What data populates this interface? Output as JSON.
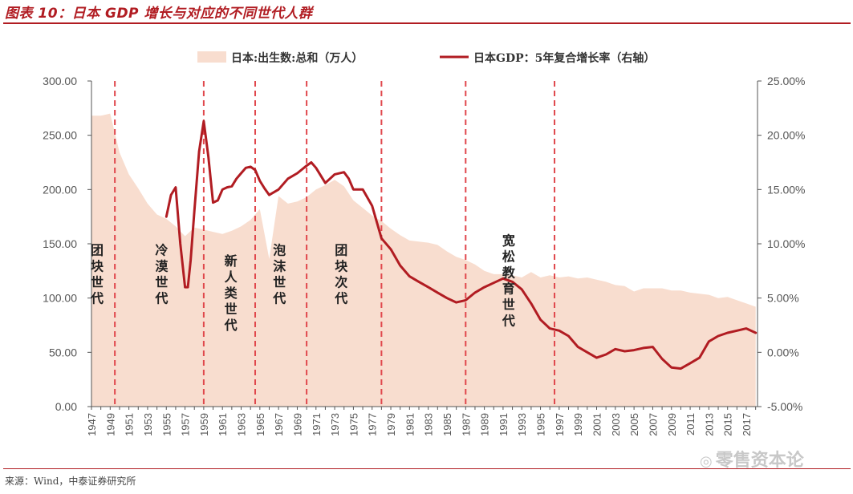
{
  "title": "图表 10：日本 GDP 增长与对应的不同世代人群",
  "source": "来源：Wind，中泰证券研究所",
  "watermark": "零售资本论",
  "colors": {
    "area": "#f8ddcf",
    "line": "#b11c22",
    "divider": "#e0474c",
    "axis": "#555555"
  },
  "chart_data": {
    "type": "area+line",
    "legend": [
      "日本:出生数:总和（万人）",
      "日本GDP：5年复合增长率（右轴）"
    ],
    "legend_position": "top",
    "y_left": {
      "ylim": [
        0,
        300
      ],
      "ticks": [
        "0.00",
        "50.00",
        "100.00",
        "150.00",
        "200.00",
        "250.00",
        "300.00"
      ]
    },
    "y_right": {
      "ylim": [
        -5,
        25
      ],
      "ticks": [
        "-5.00%",
        "0.00%",
        "5.00%",
        "10.00%",
        "15.00%",
        "20.00%",
        "25.00%"
      ]
    },
    "x_ticks": [
      "1947",
      "1949",
      "1951",
      "1953",
      "1955",
      "1957",
      "1959",
      "1961",
      "1963",
      "1965",
      "1967",
      "1969",
      "1971",
      "1973",
      "1975",
      "1977",
      "1979",
      "1981",
      "1983",
      "1985",
      "1987",
      "1989",
      "1991",
      "1993",
      "1995",
      "1997",
      "1999",
      "2001",
      "2003",
      "2005",
      "2007",
      "2009",
      "2011",
      "2013",
      "2015",
      "2017"
    ],
    "grid": false,
    "series": [
      {
        "name": "日本:出生数:总和（万人）",
        "axis": "left",
        "type": "area",
        "x": [
          1947,
          1948,
          1949,
          1950,
          1951,
          1952,
          1953,
          1954,
          1955,
          1956,
          1957,
          1958,
          1959,
          1960,
          1961,
          1962,
          1963,
          1964,
          1965,
          1966,
          1967,
          1968,
          1969,
          1970,
          1971,
          1972,
          1973,
          1974,
          1975,
          1976,
          1977,
          1978,
          1979,
          1980,
          1981,
          1982,
          1983,
          1984,
          1985,
          1986,
          1987,
          1988,
          1989,
          1990,
          1991,
          1992,
          1993,
          1994,
          1995,
          1996,
          1997,
          1998,
          1999,
          2000,
          2001,
          2002,
          2003,
          2004,
          2005,
          2006,
          2007,
          2008,
          2009,
          2010,
          2011,
          2012,
          2013,
          2014,
          2015,
          2016,
          2017,
          2018
        ],
        "values": [
          268,
          268,
          270,
          234,
          214,
          201,
          187,
          177,
          173,
          166,
          157,
          165,
          163,
          161,
          159,
          162,
          166,
          172,
          182,
          136,
          194,
          187,
          189,
          193,
          200,
          204,
          209,
          203,
          190,
          183,
          176,
          171,
          164,
          158,
          153,
          152,
          151,
          149,
          143,
          138,
          135,
          131,
          125,
          122,
          122,
          121,
          119,
          124,
          119,
          121,
          119,
          120,
          118,
          119,
          117,
          115,
          112,
          111,
          106,
          109,
          109,
          109,
          107,
          107,
          105,
          104,
          103,
          100,
          101,
          98,
          95,
          92
        ]
      },
      {
        "name": "日本GDP：5年复合增长率（右轴）",
        "axis": "right",
        "type": "line",
        "x": [
          1955,
          1955.5,
          1956,
          1956.5,
          1957,
          1957.3,
          1957.6,
          1958,
          1958.5,
          1959,
          1959.5,
          1960,
          1960.5,
          1961,
          1961.5,
          1962,
          1962.5,
          1963,
          1963.5,
          1964,
          1964.5,
          1965,
          1965.5,
          1966,
          1967,
          1968,
          1969,
          1970,
          1970.5,
          1971,
          1972,
          1973,
          1974,
          1974.5,
          1975,
          1976,
          1977,
          1978,
          1979,
          1980,
          1981,
          1982,
          1983,
          1984,
          1985,
          1986,
          1987,
          1988,
          1989,
          1990,
          1991,
          1992,
          1993,
          1994,
          1995,
          1996,
          1997,
          1998,
          1999,
          2000,
          2001,
          2002,
          2003,
          2004,
          2005,
          2006,
          2007,
          2008,
          2009,
          2010,
          2011,
          2012,
          2013,
          2014,
          2015,
          2016,
          2017,
          2018
        ],
        "values": [
          12.5,
          14.5,
          15.2,
          10.0,
          6.0,
          6.0,
          8.5,
          13.0,
          18.5,
          21.3,
          18.0,
          13.8,
          14.0,
          15.0,
          15.2,
          15.3,
          16.0,
          16.5,
          17.0,
          17.1,
          16.8,
          15.8,
          15.1,
          14.5,
          15.0,
          16.0,
          16.5,
          17.2,
          17.5,
          17.0,
          15.6,
          16.4,
          16.6,
          16.0,
          15.0,
          15.0,
          13.5,
          10.5,
          9.5,
          8.0,
          7.0,
          6.5,
          6.0,
          5.5,
          5.0,
          4.6,
          4.8,
          5.5,
          6.0,
          6.4,
          6.8,
          6.5,
          5.8,
          4.5,
          3.0,
          2.2,
          2.0,
          1.5,
          0.5,
          0.0,
          -0.5,
          -0.2,
          0.3,
          0.1,
          0.2,
          0.4,
          0.5,
          -0.6,
          -1.4,
          -1.5,
          -1.0,
          -0.5,
          1.0,
          1.5,
          1.8,
          2.0,
          2.2,
          1.8
        ]
      }
    ],
    "dividers": [
      1949.5,
      1959,
      1964.5,
      1970,
      1978,
      1987,
      1996.5
    ],
    "generations": [
      {
        "label": "团块世代",
        "x": 1947.6,
        "y": 140
      },
      {
        "label": "冷漠世代",
        "x": 1954.5,
        "y": 140
      },
      {
        "label": "新人类世代",
        "x": 1961.9,
        "y": 130
      },
      {
        "label": "泡沫世代",
        "x": 1967.1,
        "y": 140
      },
      {
        "label": "团块次代",
        "x": 1973.7,
        "y": 140
      },
      {
        "label": "宽松教育世代",
        "x": 1991.6,
        "y": 149
      }
    ]
  }
}
